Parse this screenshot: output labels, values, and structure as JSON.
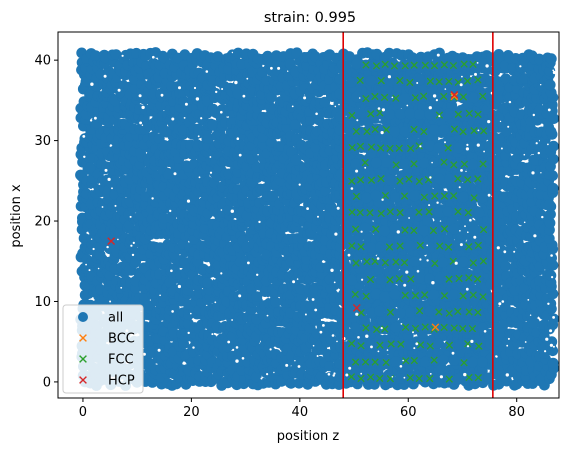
{
  "chart_data": {
    "type": "scatter",
    "title": "strain: 0.995",
    "xlabel": "position z",
    "ylabel": "position x",
    "xlim": [
      -4.6,
      87.8
    ],
    "ylim": [
      -2.0,
      43.5
    ],
    "xticks": [
      0,
      20,
      40,
      60,
      80
    ],
    "yticks": [
      0,
      10,
      20,
      30,
      40
    ],
    "legend_position": "lower-left",
    "grid": false,
    "vertical_lines": [
      {
        "x": 48.0,
        "color": "#e00000"
      },
      {
        "x": 75.6,
        "color": "#e00000"
      }
    ],
    "series": [
      {
        "name": "all",
        "marker": "circle",
        "color": "#1f77b4",
        "region": {
          "x": [
            0,
            87
          ],
          "y": [
            0,
            41
          ]
        }
      },
      {
        "name": "BCC",
        "marker": "x",
        "color": "#ff7f0e",
        "points": [
          [
            65.0,
            6.8
          ],
          [
            68.5,
            35.5
          ]
        ]
      },
      {
        "name": "FCC",
        "marker": "x",
        "color": "#2ca02c",
        "region": {
          "x": [
            49.5,
            74.0
          ],
          "y": [
            0.5,
            40.5
          ]
        }
      },
      {
        "name": "HCP",
        "marker": "x",
        "color": "#d62728",
        "points": [
          [
            5.2,
            17.5
          ],
          [
            68.5,
            35.7
          ],
          [
            50.5,
            9.2
          ]
        ]
      }
    ]
  }
}
